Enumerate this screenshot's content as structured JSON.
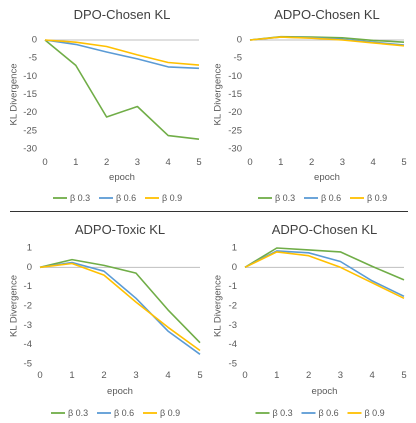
{
  "chart_data": [
    {
      "type": "line",
      "title": "DPO-Chosen KL",
      "xlabel": "epoch",
      "ylabel": "KL Divergence",
      "x": [
        0,
        1,
        2,
        3,
        4,
        5
      ],
      "ylim": [
        -30,
        0
      ],
      "yticks": [
        0,
        -5,
        -10,
        -15,
        -20,
        -25,
        -30
      ],
      "series": [
        {
          "name": "β 0.3",
          "color": "#70ad47",
          "values": [
            0,
            -7,
            -21.2,
            -18.3,
            -26.3,
            -27.3
          ]
        },
        {
          "name": "β 0.6",
          "color": "#5b9bd5",
          "values": [
            0,
            -1.2,
            -3.3,
            -5.2,
            -7.4,
            -7.8
          ]
        },
        {
          "name": "β 0.9",
          "color": "#ffc000",
          "values": [
            0,
            -0.6,
            -1.8,
            -4.1,
            -6.2,
            -6.9
          ]
        }
      ],
      "grid": false,
      "legend": "bottom"
    },
    {
      "type": "line",
      "title": "ADPO-Chosen KL",
      "xlabel": "epoch",
      "ylabel": "KL Divergence",
      "x": [
        0,
        1,
        2,
        3,
        4,
        5
      ],
      "ylim": [
        -30,
        0
      ],
      "yticks": [
        0,
        -5,
        -10,
        -15,
        -20,
        -25,
        -30
      ],
      "series": [
        {
          "name": "β 0.3",
          "color": "#70ad47",
          "values": [
            0,
            0.9,
            0.8,
            0.6,
            -0.1,
            -0.6
          ]
        },
        {
          "name": "β 0.6",
          "color": "#5b9bd5",
          "values": [
            0,
            0.8,
            0.6,
            0.2,
            -0.6,
            -1.4
          ]
        },
        {
          "name": "β 0.9",
          "color": "#ffc000",
          "values": [
            0,
            0.8,
            0.5,
            0.0,
            -0.8,
            -1.6
          ]
        }
      ],
      "grid": false,
      "legend": "bottom"
    },
    {
      "type": "line",
      "title": "ADPO-Toxic KL",
      "xlabel": "epoch",
      "ylabel": "KL Divergence",
      "x": [
        0,
        1,
        2,
        3,
        4,
        5
      ],
      "ylim": [
        -5,
        1
      ],
      "yticks": [
        1,
        0,
        -1,
        -2,
        -3,
        -4,
        -5
      ],
      "series": [
        {
          "name": "β 0.3",
          "color": "#70ad47",
          "values": [
            0,
            0.4,
            0.1,
            -0.3,
            -2.2,
            -3.9
          ]
        },
        {
          "name": "β 0.6",
          "color": "#5b9bd5",
          "values": [
            0,
            0.25,
            -0.2,
            -1.6,
            -3.3,
            -4.5
          ]
        },
        {
          "name": "β 0.9",
          "color": "#ffc000",
          "values": [
            0,
            0.2,
            -0.4,
            -1.8,
            -3.1,
            -4.3
          ]
        }
      ],
      "grid": false,
      "legend": "bottom"
    },
    {
      "type": "line",
      "title": "ADPO-Chosen KL",
      "xlabel": "epoch",
      "ylabel": "KL Divergence",
      "x": [
        0,
        1,
        2,
        3,
        4,
        5
      ],
      "ylim": [
        -5,
        1
      ],
      "yticks": [
        1,
        0,
        -1,
        -2,
        -3,
        -4,
        -5
      ],
      "series": [
        {
          "name": "β 0.3",
          "color": "#70ad47",
          "values": [
            0,
            1.0,
            0.9,
            0.8,
            0.05,
            -0.65
          ]
        },
        {
          "name": "β 0.6",
          "color": "#5b9bd5",
          "values": [
            0,
            0.85,
            0.75,
            0.3,
            -0.7,
            -1.5
          ]
        },
        {
          "name": "β 0.9",
          "color": "#ffc000",
          "values": [
            0,
            0.8,
            0.6,
            0.0,
            -0.8,
            -1.6
          ]
        }
      ],
      "grid": false,
      "legend": "bottom"
    }
  ]
}
